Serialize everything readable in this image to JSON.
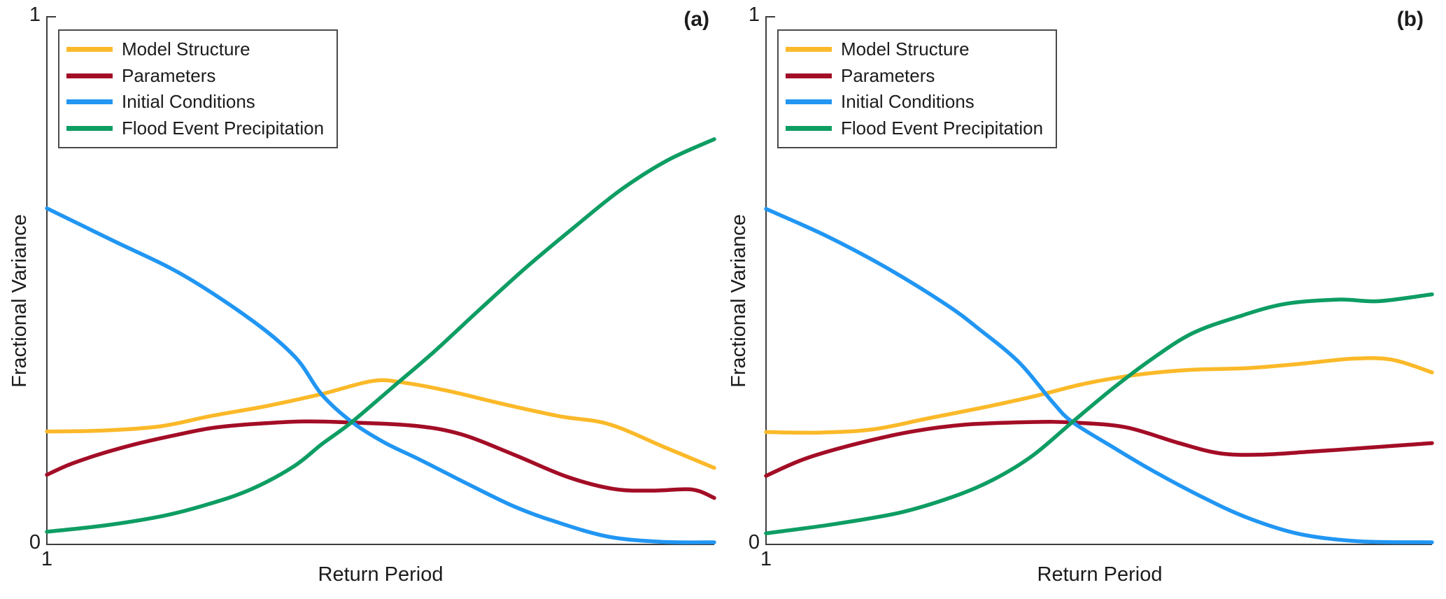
{
  "figure": {
    "background": "#ffffff",
    "axis_color": "#3d3d3d",
    "text_color": "#1c1c1c"
  },
  "chart_data": [
    {
      "type": "line",
      "panel_label": "(a)",
      "x_axis": {
        "label": "Return Period",
        "tick_labels": [
          "1"
        ]
      },
      "y_axis": {
        "label": "Fractional Variance",
        "tick_labels": [
          "0",
          "1"
        ],
        "range": [
          0,
          1
        ]
      },
      "legend": {
        "position": "top-left"
      },
      "series": [
        {
          "name": "Model Structure",
          "color": "#FBB929",
          "x_fraction_of_axis": [
            0,
            0.087,
            0.171,
            0.244,
            0.328,
            0.412,
            0.489,
            0.538,
            0.601,
            0.684,
            0.768,
            0.842,
            0.926,
            1
          ],
          "values": [
            0.214,
            0.216,
            0.224,
            0.243,
            0.262,
            0.285,
            0.31,
            0.306,
            0.291,
            0.266,
            0.243,
            0.228,
            0.184,
            0.145
          ]
        },
        {
          "name": "Parameters",
          "color": "#A30D26",
          "x_fraction_of_axis": [
            0,
            0.035,
            0.087,
            0.139,
            0.192,
            0.244,
            0.297,
            0.384,
            0.457,
            0.55,
            0.62,
            0.7,
            0.78,
            0.85,
            0.91,
            0.967,
            1
          ],
          "values": [
            0.132,
            0.152,
            0.174,
            0.192,
            0.207,
            0.22,
            0.227,
            0.233,
            0.231,
            0.225,
            0.209,
            0.17,
            0.128,
            0.105,
            0.102,
            0.104,
            0.088
          ]
        },
        {
          "name": "Initial Conditions",
          "color": "#2196F3",
          "x_fraction_of_axis": [
            0,
            0.097,
            0.202,
            0.307,
            0.372,
            0.412,
            0.457,
            0.506,
            0.56,
            0.63,
            0.7,
            0.76,
            0.84,
            0.92,
            1
          ],
          "values": [
            0.637,
            0.577,
            0.512,
            0.425,
            0.355,
            0.284,
            0.232,
            0.193,
            0.16,
            0.115,
            0.072,
            0.044,
            0.015,
            0.005,
            0.004
          ]
        },
        {
          "name": "Flood Event Precipitation",
          "color": "#0E9D63",
          "x_fraction_of_axis": [
            0,
            0.087,
            0.174,
            0.244,
            0.307,
            0.37,
            0.412,
            0.457,
            0.52,
            0.58,
            0.65,
            0.72,
            0.789,
            0.86,
            0.93,
            1
          ],
          "values": [
            0.024,
            0.036,
            0.054,
            0.077,
            0.105,
            0.148,
            0.19,
            0.232,
            0.3,
            0.365,
            0.447,
            0.527,
            0.6,
            0.672,
            0.728,
            0.768
          ]
        }
      ]
    },
    {
      "type": "line",
      "panel_label": "(b)",
      "x_axis": {
        "label": "Return Period",
        "tick_labels": [
          "1"
        ]
      },
      "y_axis": {
        "label": "Fractional Variance",
        "tick_labels": [
          "0",
          "1"
        ],
        "range": [
          0,
          1
        ]
      },
      "legend": {
        "position": "top-left"
      },
      "series": [
        {
          "name": "Model Structure",
          "color": "#FBB929",
          "x_fraction_of_axis": [
            0,
            0.08,
            0.16,
            0.24,
            0.32,
            0.4,
            0.48,
            0.56,
            0.64,
            0.72,
            0.8,
            0.88,
            0.94,
            1
          ],
          "values": [
            0.213,
            0.212,
            0.218,
            0.238,
            0.258,
            0.28,
            0.305,
            0.322,
            0.331,
            0.334,
            0.342,
            0.352,
            0.35,
            0.326
          ]
        },
        {
          "name": "Parameters",
          "color": "#A30D26",
          "x_fraction_of_axis": [
            0,
            0.06,
            0.14,
            0.22,
            0.3,
            0.4,
            0.46,
            0.54,
            0.62,
            0.68,
            0.74,
            0.82,
            0.9,
            1
          ],
          "values": [
            0.13,
            0.163,
            0.192,
            0.214,
            0.227,
            0.232,
            0.231,
            0.222,
            0.192,
            0.173,
            0.17,
            0.176,
            0.183,
            0.192
          ]
        },
        {
          "name": "Initial Conditions",
          "color": "#2196F3",
          "x_fraction_of_axis": [
            0,
            0.09,
            0.18,
            0.27,
            0.32,
            0.38,
            0.43,
            0.46,
            0.52,
            0.58,
            0.65,
            0.72,
            0.8,
            0.89,
            1
          ],
          "values": [
            0.636,
            0.585,
            0.525,
            0.455,
            0.408,
            0.345,
            0.27,
            0.232,
            0.185,
            0.14,
            0.093,
            0.052,
            0.02,
            0.006,
            0.004
          ]
        },
        {
          "name": "Flood Event Precipitation",
          "color": "#0E9D63",
          "x_fraction_of_axis": [
            0,
            0.1,
            0.2,
            0.28,
            0.34,
            0.4,
            0.46,
            0.52,
            0.58,
            0.64,
            0.71,
            0.78,
            0.86,
            0.92,
            1
          ],
          "values": [
            0.021,
            0.038,
            0.06,
            0.09,
            0.122,
            0.168,
            0.232,
            0.295,
            0.352,
            0.4,
            0.432,
            0.456,
            0.464,
            0.461,
            0.474
          ]
        }
      ]
    }
  ]
}
